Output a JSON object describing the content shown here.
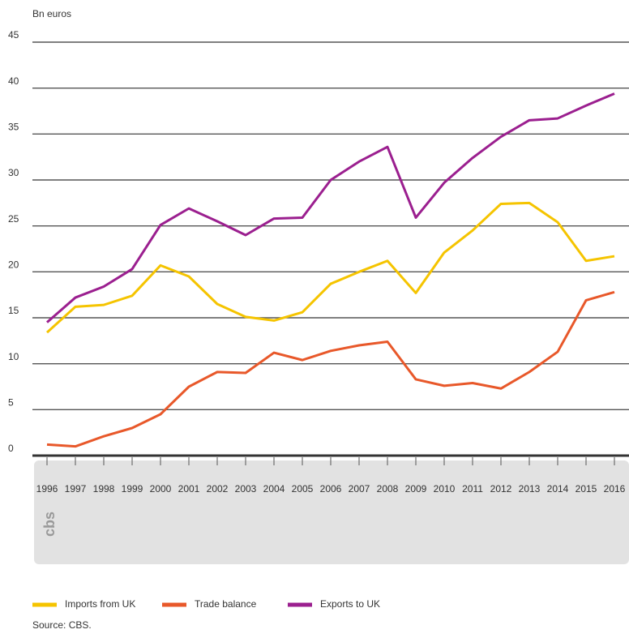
{
  "chart_data": {
    "type": "line",
    "y_label": "Bn euros",
    "categories": [
      "1996",
      "1997",
      "1998",
      "1999",
      "2000",
      "2001",
      "2002",
      "2003",
      "2004",
      "2005",
      "2006",
      "2007",
      "2008",
      "2009",
      "2010",
      "2011",
      "2012",
      "2013",
      "2014",
      "2015",
      "2016"
    ],
    "series": [
      {
        "name": "Imports from UK",
        "color": "#f5c400",
        "values": [
          13.4,
          16.2,
          16.4,
          17.4,
          20.7,
          19.5,
          16.5,
          15.1,
          14.7,
          15.6,
          18.7,
          20.0,
          21.2,
          17.7,
          22.1,
          24.5,
          27.4,
          27.5,
          25.4,
          21.2,
          21.7
        ]
      },
      {
        "name": "Trade balance",
        "color": "#e8582a",
        "values": [
          1.2,
          1.0,
          2.1,
          3.0,
          4.5,
          7.5,
          9.1,
          9.0,
          11.2,
          10.4,
          11.4,
          12.0,
          12.4,
          8.3,
          7.6,
          7.9,
          7.3,
          9.1,
          11.3,
          16.9,
          17.8
        ]
      },
      {
        "name": "Exports to UK",
        "color": "#9b1f8f",
        "values": [
          14.5,
          17.2,
          18.4,
          20.3,
          25.1,
          26.9,
          25.5,
          24.0,
          25.8,
          25.9,
          30.0,
          32.0,
          33.6,
          25.9,
          29.7,
          32.4,
          34.7,
          36.5,
          36.7,
          38.1,
          39.4
        ]
      }
    ],
    "ylim": [
      0,
      45
    ],
    "yticks": [
      0,
      5,
      10,
      15,
      20,
      25,
      30,
      35,
      40,
      45
    ],
    "grid": true,
    "logo": "cbs",
    "source": "Source: CBS."
  }
}
